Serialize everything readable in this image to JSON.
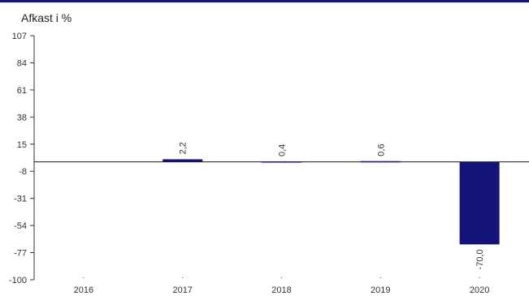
{
  "chart_data": {
    "type": "bar",
    "ylabel": "Afkast i %",
    "categories": [
      "2016",
      "2017",
      "2018",
      "2019",
      "2020"
    ],
    "values": [
      null,
      2.2,
      0.4,
      0.6,
      -70.0
    ],
    "data_labels": [
      "",
      "2,2",
      "0,4",
      "0,6",
      "-70,0"
    ],
    "ylim": [
      -100,
      107
    ],
    "yticks": [
      107,
      84,
      61,
      38,
      15,
      -8,
      -31,
      -54,
      -77,
      -100
    ],
    "ytick_labels": [
      "107",
      "84",
      "61",
      "38",
      "15",
      "-8",
      "-31",
      "-54",
      "-77",
      "-100"
    ],
    "grid": false,
    "legend": "none",
    "bar_color": "#14137a",
    "accent_color": "#14137a"
  }
}
